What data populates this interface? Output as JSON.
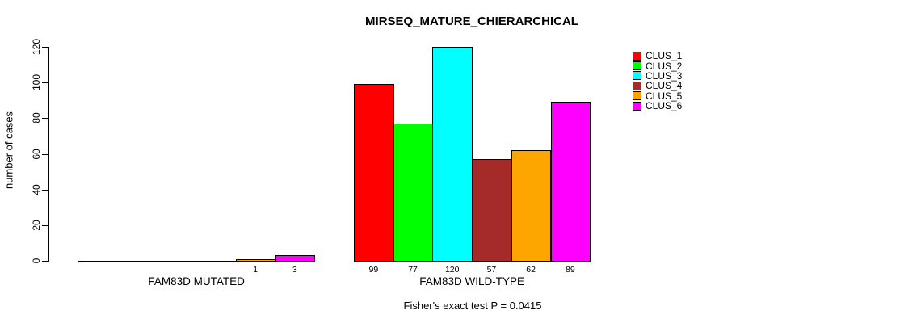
{
  "figure": {
    "title": "MIRSEQ_MATURE_CHIERARCHICAL",
    "footer": "Fisher's exact test P = 0.0415"
  },
  "chart_data": {
    "type": "bar",
    "title": "MIRSEQ_MATURE_CHIERARCHICAL",
    "ylabel": "number of cases",
    "xlabel": "",
    "ylim": [
      0,
      120
    ],
    "yticks": [
      0,
      20,
      40,
      60,
      80,
      100,
      120
    ],
    "grid": false,
    "legend_position": "right",
    "legend": [
      {
        "label": "CLUS_1",
        "color": "#ff0000"
      },
      {
        "label": "CLUS_2",
        "color": "#00ff00"
      },
      {
        "label": "CLUS_3",
        "color": "#00ffff"
      },
      {
        "label": "CLUS_4",
        "color": "#a52a2a"
      },
      {
        "label": "CLUS_5",
        "color": "#ffa500"
      },
      {
        "label": "CLUS_6",
        "color": "#ff00ff"
      }
    ],
    "series_colors": [
      "#ff0000",
      "#00ff00",
      "#00ffff",
      "#a52a2a",
      "#ffa500",
      "#ff00ff"
    ],
    "groups": [
      {
        "label": "FAM83D MUTATED",
        "values": [
          0,
          0,
          0,
          0,
          1,
          3
        ],
        "bar_labels": [
          "",
          "",
          "",
          "",
          "1",
          "3"
        ]
      },
      {
        "label": "FAM83D WILD-TYPE",
        "values": [
          99,
          77,
          120,
          57,
          62,
          89
        ],
        "bar_labels": [
          "99",
          "77",
          "120",
          "57",
          "62",
          "89"
        ]
      }
    ],
    "annotation": "Fisher's exact test P = 0.0415"
  }
}
